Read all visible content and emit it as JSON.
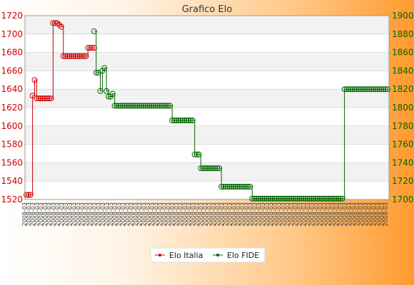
{
  "chart_data": {
    "type": "line",
    "title": "Grafico Elo",
    "legend": {
      "position": "bottom",
      "entries": [
        "Elo Italia",
        "Elo FIDE"
      ]
    },
    "y_left": {
      "ylim": [
        1520,
        1720
      ],
      "ticks": [
        1520,
        1540,
        1560,
        1580,
        1600,
        1620,
        1640,
        1660,
        1680,
        1700,
        1720
      ],
      "color": "#cc0000"
    },
    "y_right": {
      "ylim": [
        1700,
        1900
      ],
      "ticks": [
        1700,
        1720,
        1740,
        1760,
        1780,
        1800,
        1820,
        1840,
        1860,
        1880,
        1900
      ],
      "color": "#006600"
    },
    "x_tick_text": "2008-03",
    "grid": true,
    "series": [
      {
        "name": "Elo Italia",
        "axis": "left",
        "color": "#cc0000",
        "values": [
          1525,
          1525,
          1525,
          1633,
          1650,
          1630,
          1630,
          1630,
          1630,
          1630,
          1630,
          1630,
          1630,
          1712,
          1712,
          1712,
          1710,
          1708,
          1676,
          1676,
          1676,
          1676,
          1676,
          1676,
          1676,
          1676,
          1676,
          1676,
          1676,
          1676,
          1685,
          1685,
          1685,
          1685
        ]
      },
      {
        "name": "Elo FIDE",
        "axis": "right",
        "color": "#006600",
        "values": [
          null,
          null,
          null,
          null,
          null,
          null,
          null,
          null,
          null,
          null,
          null,
          null,
          null,
          null,
          null,
          null,
          null,
          null,
          null,
          null,
          null,
          null,
          null,
          null,
          null,
          null,
          null,
          null,
          null,
          null,
          null,
          null,
          null,
          1883,
          1838,
          1838,
          1818,
          1840,
          1843,
          1818,
          1812,
          1812,
          1815,
          1802,
          1802,
          1802,
          1802,
          1802,
          1802,
          1802,
          1802,
          1802,
          1802,
          1802,
          1802,
          1802,
          1802,
          1802,
          1802,
          1802,
          1802,
          1802,
          1802,
          1802,
          1802,
          1802,
          1802,
          1802,
          1802,
          1802,
          1802,
          1786,
          1786,
          1786,
          1786,
          1786,
          1786,
          1786,
          1786,
          1786,
          1786,
          1786,
          1749,
          1749,
          1749,
          1734,
          1734,
          1734,
          1734,
          1734,
          1734,
          1734,
          1734,
          1734,
          1734,
          1714,
          1714,
          1714,
          1714,
          1714,
          1714,
          1714,
          1714,
          1714,
          1714,
          1714,
          1714,
          1714,
          1714,
          1714,
          1701,
          1701,
          1701,
          1701,
          1701,
          1701,
          1701,
          1701,
          1701,
          1701,
          1701,
          1701,
          1701,
          1701,
          1701,
          1701,
          1701,
          1701,
          1701,
          1701,
          1701,
          1701,
          1701,
          1701,
          1701,
          1701,
          1701,
          1701,
          1701,
          1701,
          1701,
          1701,
          1701,
          1701,
          1701,
          1701,
          1701,
          1701,
          1701,
          1701,
          1701,
          1701,
          1701,
          1701,
          1701,
          1820,
          1820,
          1820,
          1820,
          1820,
          1820,
          1820,
          1820,
          1820,
          1820,
          1820,
          1820,
          1820,
          1820,
          1820,
          1820,
          1820,
          1820,
          1820,
          1820,
          1820,
          1820
        ]
      }
    ]
  }
}
